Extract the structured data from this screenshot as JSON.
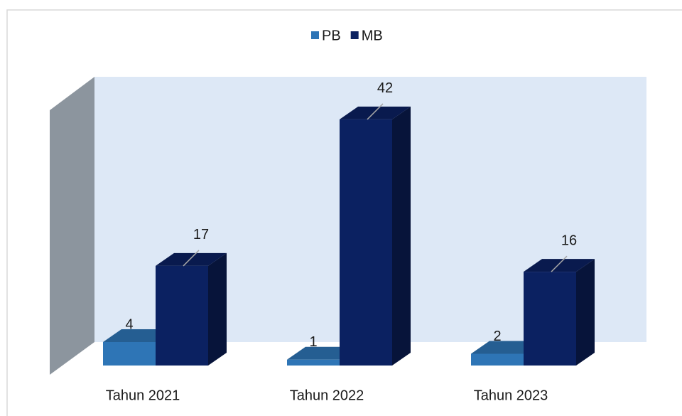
{
  "chart_data": {
    "type": "bar3d",
    "categories": [
      "Tahun 2021",
      "Tahun 2022",
      "Tahun 2023"
    ],
    "series": [
      {
        "name": "PB",
        "color": "#2e75b6",
        "values": [
          4,
          1,
          2
        ]
      },
      {
        "name": "MB",
        "color": "#0b2161",
        "values": [
          17,
          42,
          16
        ]
      }
    ],
    "legend": "top"
  }
}
